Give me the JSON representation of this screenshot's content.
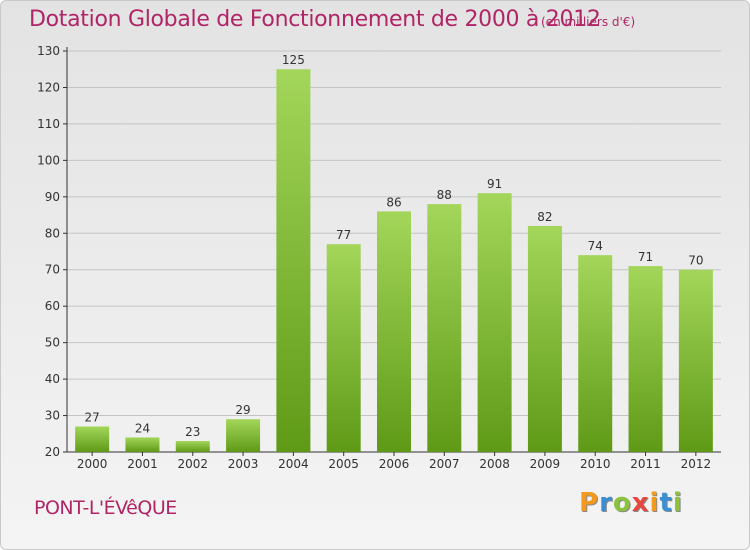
{
  "header": {
    "title": "Dotation Globale de Fonctionnement de 2000 à 2012",
    "unit_note": "(en milliers d'€)"
  },
  "footer": {
    "location": "PONT-L'ÉVêQUE",
    "logo": {
      "text": "Proxiti",
      "letters": [
        {
          "ch": "P",
          "color": "#f39a1e"
        },
        {
          "ch": "r",
          "color": "#3a8fd4"
        },
        {
          "ch": "o",
          "color": "#8cc23f"
        },
        {
          "ch": "x",
          "color": "#e8473f"
        },
        {
          "ch": "i",
          "color": "#f39a1e"
        },
        {
          "ch": "t",
          "color": "#3a8fd4"
        },
        {
          "ch": "i",
          "color": "#8cc23f"
        }
      ]
    }
  },
  "colors": {
    "bar_top": "#a3d65a",
    "bar_bottom": "#5f9a17",
    "title": "#b02566",
    "axis": "#333333",
    "grid": "#c4c4c4"
  },
  "chart_data": {
    "type": "bar",
    "categories": [
      "2000",
      "2001",
      "2002",
      "2003",
      "2004",
      "2005",
      "2006",
      "2007",
      "2008",
      "2009",
      "2010",
      "2011",
      "2012"
    ],
    "values": [
      27,
      24,
      23,
      29,
      125,
      77,
      86,
      88,
      91,
      82,
      74,
      71,
      70
    ],
    "ylim": [
      20,
      130
    ],
    "yticks": [
      20,
      30,
      40,
      50,
      60,
      70,
      80,
      90,
      100,
      110,
      120,
      130
    ],
    "grid": true,
    "data_labels": true
  }
}
